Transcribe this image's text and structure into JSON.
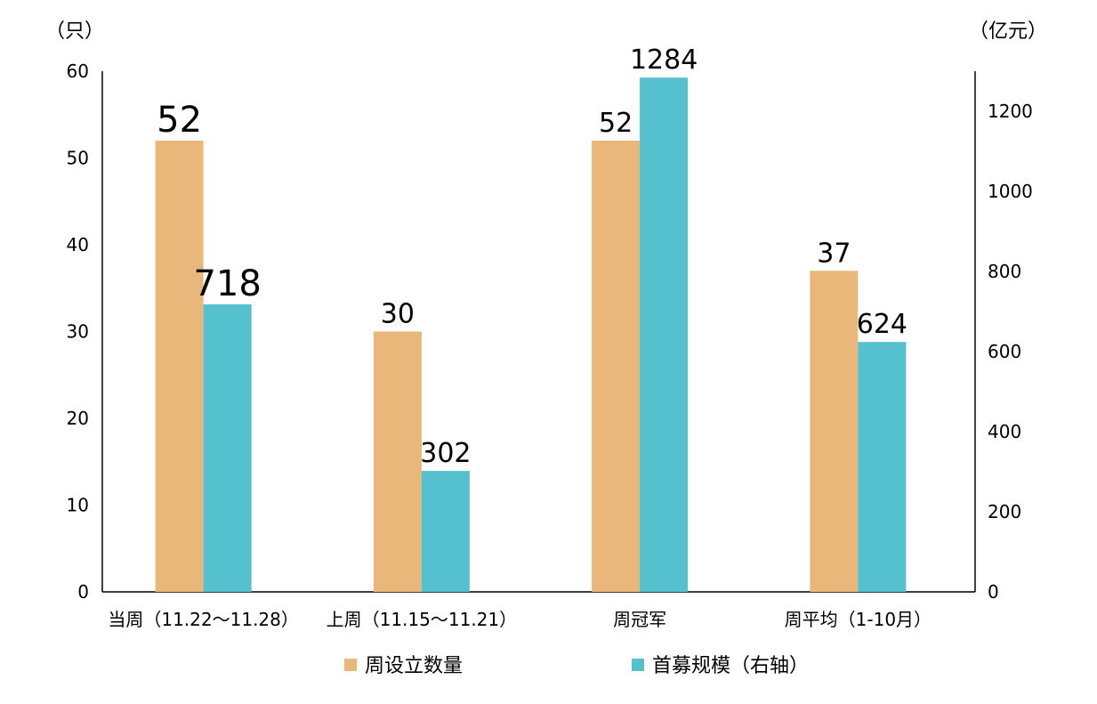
{
  "chart_data": {
    "type": "bar",
    "categories": [
      "当周（11.22～11.28）",
      "上周（11.15～11.21）",
      "周冠军",
      "周平均（1-10月）"
    ],
    "series": [
      {
        "name": "周设立数量",
        "axis": "left",
        "color": "#E8B779",
        "values": [
          52,
          30,
          52,
          37
        ],
        "labels": [
          "52",
          "30",
          "52",
          "37"
        ]
      },
      {
        "name": "首募规模（右轴）",
        "axis": "right",
        "color": "#56C1CE",
        "values": [
          718,
          302,
          1284,
          624
        ],
        "labels": [
          "718",
          "302",
          "1284",
          "624"
        ]
      }
    ],
    "y_left": {
      "unit": "（只）",
      "min": 0,
      "max": 60,
      "ticks": [
        "0",
        "10",
        "20",
        "30",
        "40",
        "50",
        "60"
      ]
    },
    "y_right": {
      "unit": "（亿元）",
      "min": 0,
      "max": 1300,
      "ticks": [
        "0",
        "200",
        "400",
        "600",
        "800",
        "1000",
        "1200"
      ]
    },
    "grid": false,
    "legend_position": "bottom"
  }
}
